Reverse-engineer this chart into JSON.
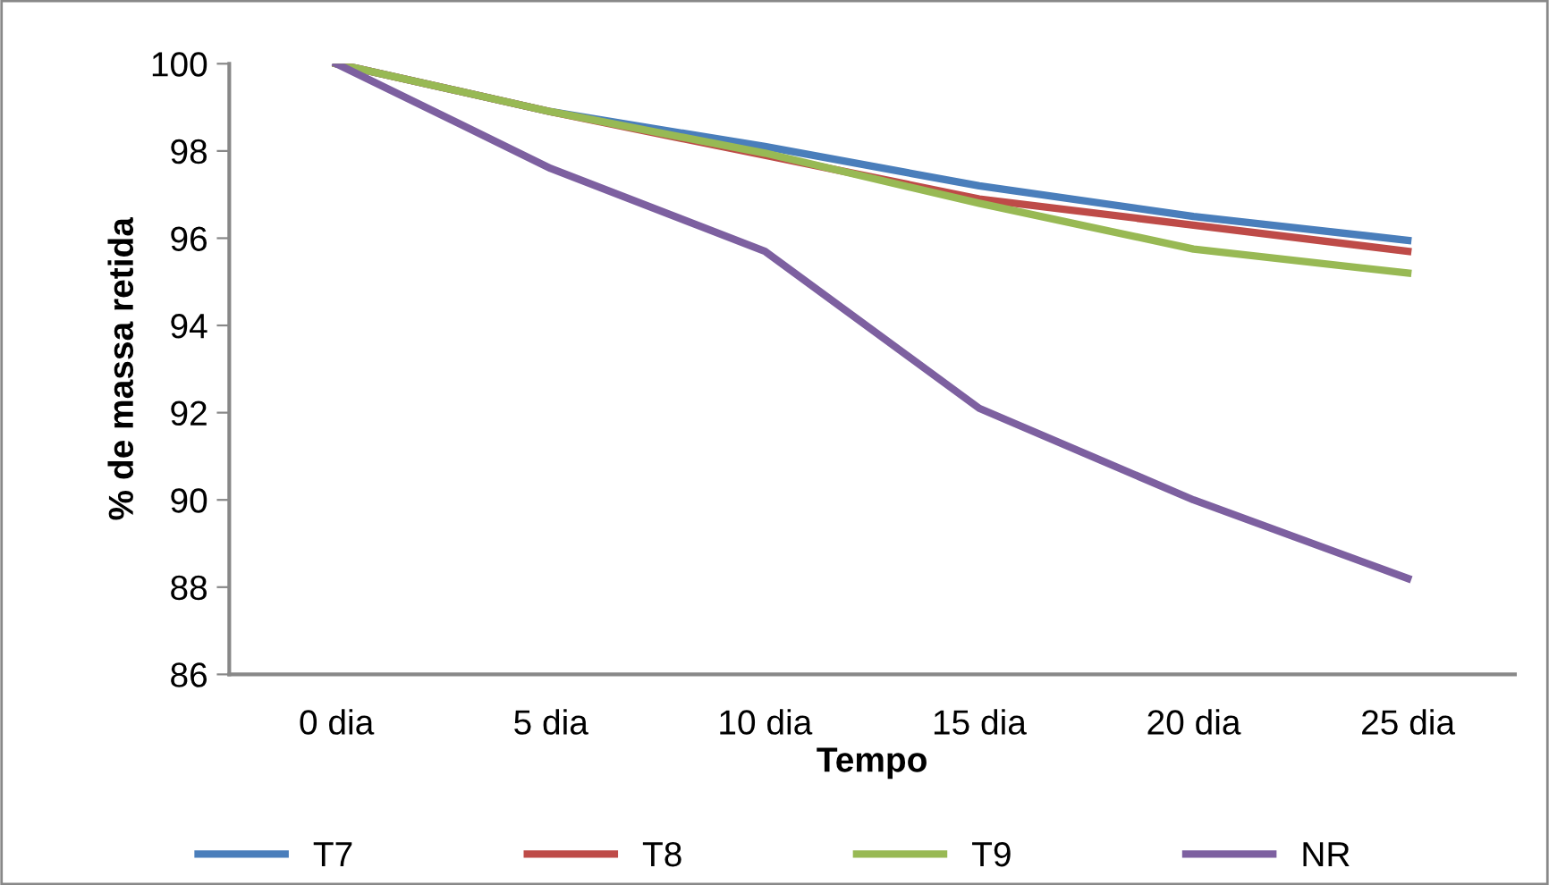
{
  "chart_data": {
    "type": "line",
    "xlabel": "Tempo",
    "ylabel": "% de massa retida",
    "categories": [
      "0 dia",
      "5 dia",
      "10 dia",
      "15 dia",
      "20 dia",
      "25 dia"
    ],
    "series": [
      {
        "name": "T7",
        "color": "#4a7ebb",
        "values": [
          100,
          98.9,
          98.1,
          97.2,
          96.5,
          95.95
        ]
      },
      {
        "name": "T8",
        "color": "#be4b48",
        "values": [
          100,
          98.9,
          97.9,
          96.9,
          96.3,
          95.7
        ]
      },
      {
        "name": "T9",
        "color": "#98b954",
        "values": [
          100,
          98.9,
          97.95,
          96.8,
          95.75,
          95.2
        ]
      },
      {
        "name": "NR",
        "color": "#7d60a0",
        "values": [
          100,
          97.6,
          95.7,
          92.1,
          90.0,
          88.2
        ]
      }
    ],
    "ylim": [
      86,
      100
    ],
    "yticks": [
      86,
      88,
      90,
      92,
      94,
      96,
      98,
      100
    ],
    "grid": false,
    "legend": "bottom"
  }
}
